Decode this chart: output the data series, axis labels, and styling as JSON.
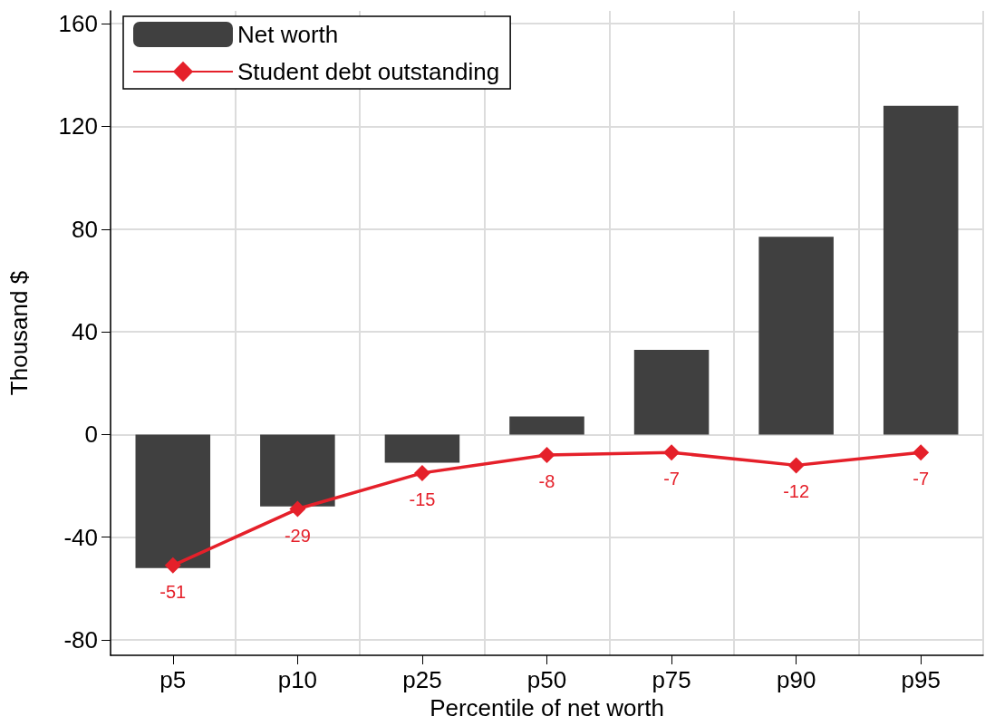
{
  "chart_data": {
    "type": "bar",
    "xlabel": "Percentile of net worth",
    "ylabel": "Thousand $",
    "categories": [
      "p5",
      "p10",
      "p25",
      "p50",
      "p75",
      "p90",
      "p95"
    ],
    "series": [
      {
        "name": "Net worth",
        "color": "#404040",
        "values": [
          -52,
          -28,
          -11,
          7,
          33,
          77,
          128
        ]
      },
      {
        "name": "Student debt outstanding",
        "type": "line",
        "color": "#e5202a",
        "marker": "diamond",
        "data_labels": true,
        "values": [
          -51,
          -29,
          -15,
          -8,
          -7,
          -12,
          -7
        ]
      }
    ],
    "ylim": [
      -86,
      165
    ],
    "yticks": [
      -80,
      -40,
      0,
      40,
      80,
      120,
      160
    ],
    "grid": true,
    "legend": "top left"
  }
}
